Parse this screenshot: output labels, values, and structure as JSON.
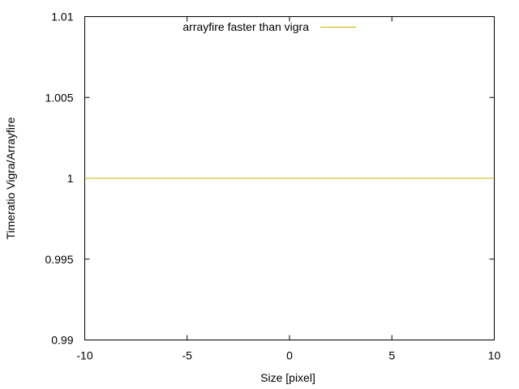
{
  "chart_data": {
    "type": "line",
    "xlabel": "Size [pixel]",
    "ylabel": "Timeratio Vigra/Arrayfire",
    "xlim": [
      -10,
      10
    ],
    "ylim": [
      0.99,
      1.01
    ],
    "x_ticks": [
      -10,
      -5,
      0,
      5,
      10
    ],
    "y_ticks": [
      0.99,
      0.995,
      1,
      1.005,
      1.01
    ],
    "x_tick_labels": [
      "-10",
      "-5",
      "0",
      "5",
      "10"
    ],
    "y_tick_labels": [
      "0.99",
      "0.995",
      "1",
      "1.005",
      "1.01"
    ],
    "grid": false,
    "legend_position": "top-center",
    "series": [
      {
        "name": "arrayfire faster than vigra",
        "color": "#c8b400",
        "x": [
          -10,
          10
        ],
        "y": [
          1,
          1
        ]
      }
    ]
  }
}
